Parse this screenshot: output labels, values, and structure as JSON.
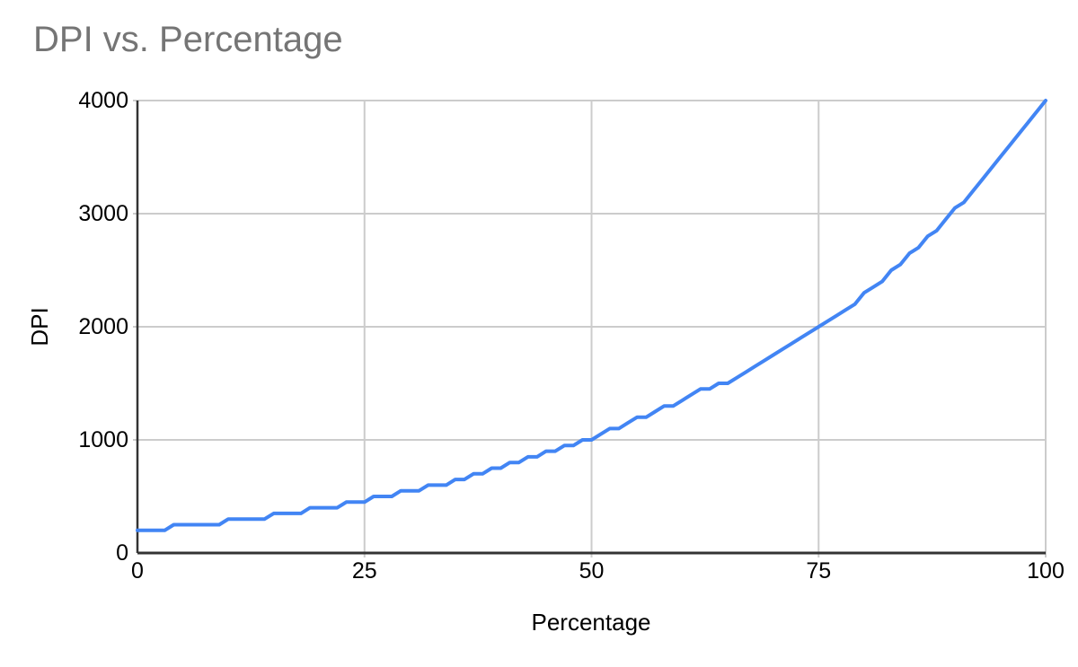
{
  "chart_data": {
    "type": "line",
    "title": "DPI vs. Percentage",
    "xlabel": "Percentage",
    "ylabel": "DPI",
    "xlim": [
      0,
      100
    ],
    "ylim": [
      0,
      4000
    ],
    "x_ticks": [
      0,
      25,
      50,
      75,
      100
    ],
    "y_ticks": [
      0,
      1000,
      2000,
      3000,
      4000
    ],
    "grid": true,
    "legend": "none",
    "series": [
      {
        "name": "DPI",
        "color": "#4285f4",
        "line_width": 4,
        "x": [
          0,
          1,
          2,
          3,
          4,
          5,
          6,
          7,
          8,
          9,
          10,
          11,
          12,
          13,
          14,
          15,
          16,
          17,
          18,
          19,
          20,
          21,
          22,
          23,
          24,
          25,
          26,
          27,
          28,
          29,
          30,
          31,
          32,
          33,
          34,
          35,
          36,
          37,
          38,
          39,
          40,
          41,
          42,
          43,
          44,
          45,
          46,
          47,
          48,
          49,
          50,
          51,
          52,
          53,
          54,
          55,
          56,
          57,
          58,
          59,
          60,
          61,
          62,
          63,
          64,
          65,
          66,
          67,
          68,
          69,
          70,
          71,
          72,
          73,
          74,
          75,
          76,
          77,
          78,
          79,
          80,
          81,
          82,
          83,
          84,
          85,
          86,
          87,
          88,
          89,
          90,
          91,
          92,
          93,
          94,
          95,
          96,
          97,
          98,
          99,
          100
        ],
        "y": [
          200,
          200,
          200,
          200,
          250,
          250,
          250,
          250,
          250,
          250,
          300,
          300,
          300,
          300,
          300,
          350,
          350,
          350,
          350,
          400,
          400,
          400,
          400,
          450,
          450,
          450,
          500,
          500,
          500,
          550,
          550,
          550,
          600,
          600,
          600,
          650,
          650,
          700,
          700,
          750,
          750,
          800,
          800,
          850,
          850,
          900,
          900,
          950,
          950,
          1000,
          1000,
          1050,
          1100,
          1100,
          1150,
          1200,
          1200,
          1250,
          1300,
          1300,
          1350,
          1400,
          1450,
          1450,
          1500,
          1500,
          1550,
          1600,
          1650,
          1700,
          1750,
          1800,
          1850,
          1900,
          1950,
          2000,
          2050,
          2100,
          2150,
          2200,
          2300,
          2350,
          2400,
          2500,
          2550,
          2650,
          2700,
          2800,
          2850,
          2950,
          3050,
          3100,
          3200,
          3300,
          3400,
          3500,
          3600,
          3700,
          3800,
          3900,
          4000
        ]
      }
    ],
    "colors": {
      "line": "#4285f4",
      "title_text": "#757575",
      "axis_text": "#000000",
      "gridline": "#cccccc",
      "axis_line": "#333333",
      "background": "#ffffff"
    }
  }
}
